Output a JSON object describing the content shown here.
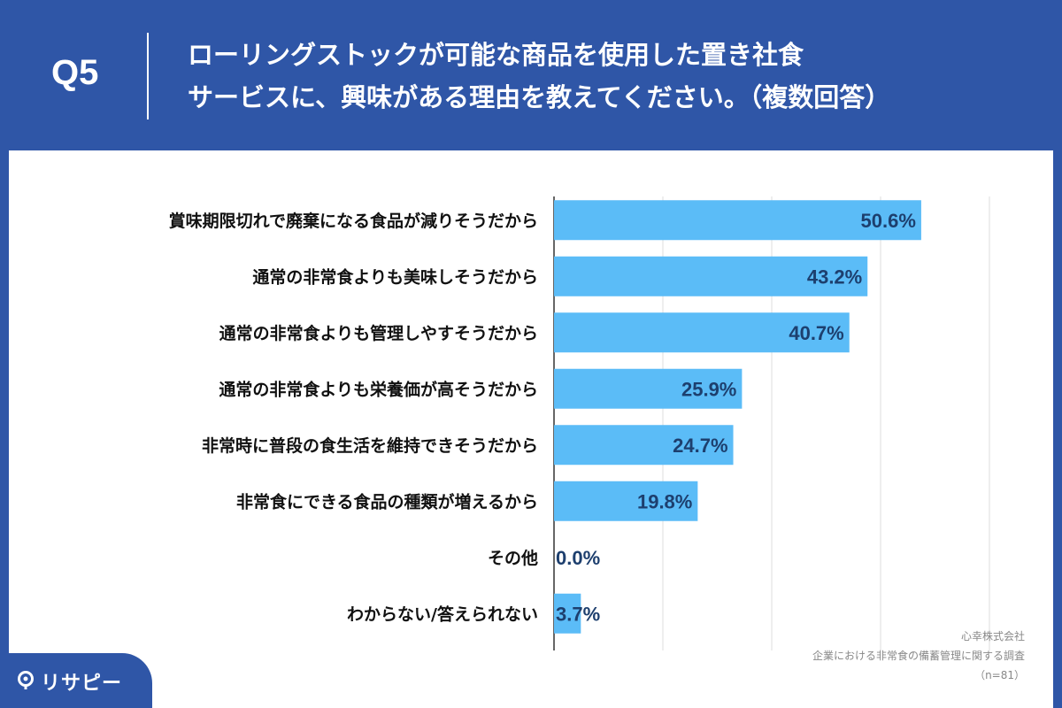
{
  "header": {
    "question_number": "Q5",
    "question_line1": "ローリングストックが可能な商品を使用した置き社食",
    "question_line2": "サービスに、興味がある理由を教えてください。（複数回答）"
  },
  "source": {
    "company": "心幸株式会社",
    "survey": "企業における非常食の備蓄管理に関する調査",
    "sample": "（n=81）"
  },
  "logo": {
    "text": "リサピー",
    "icon": "location-pin-icon"
  },
  "colors": {
    "background": "#2f56a7",
    "bar": "#5bbcf7",
    "value_text": "#1d3f6e",
    "grid": "#dddddd"
  },
  "chart_data": {
    "type": "bar",
    "orientation": "horizontal",
    "categories": [
      "賞味期限切れで廃棄になる食品が減りそうだから",
      "通常の非常食よりも美味しそうだから",
      "通常の非常食よりも管理しやすそうだから",
      "通常の非常食よりも栄養価が高そうだから",
      "非常時に普段の食生活を維持できそうだから",
      "非常食にできる食品の種類が増えるから",
      "その他",
      "わからない/答えられない"
    ],
    "values": [
      50.6,
      43.2,
      40.7,
      25.9,
      24.7,
      19.8,
      0.0,
      3.7
    ],
    "value_labels": [
      "50.6%",
      "43.2%",
      "40.7%",
      "25.9%",
      "24.7%",
      "19.8%",
      "0.0%",
      "3.7%"
    ],
    "xlim": [
      0,
      60
    ],
    "grid": true,
    "gridlines": [
      0,
      15,
      30,
      45,
      60
    ]
  }
}
